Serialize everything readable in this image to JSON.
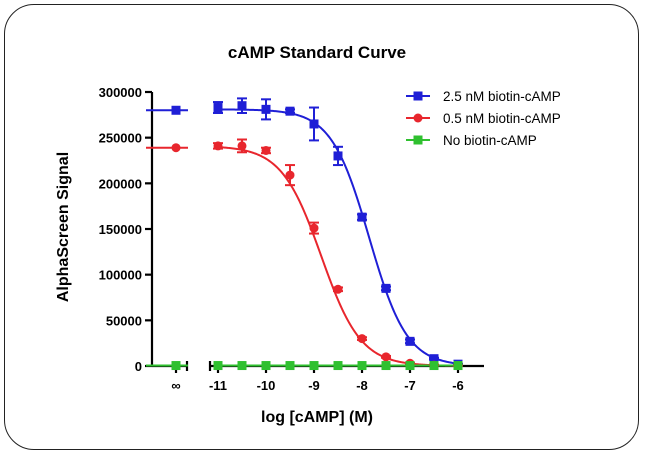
{
  "chart_data": {
    "type": "line",
    "title": "cAMP Standard Curve",
    "xlabel": "log [cAMP] (M)",
    "ylabel": "AlphaScreen Signal",
    "xlim": [
      -11.6,
      -5.9
    ],
    "ylim": [
      0,
      300000
    ],
    "x_break_label": "∞",
    "xticks": [
      -11,
      -10,
      -9,
      -8,
      -7,
      -6
    ],
    "xtick_labels": [
      "-11",
      "-10",
      "-9",
      "-8",
      "-7",
      "-6"
    ],
    "yticks": [
      0,
      50000,
      100000,
      150000,
      200000,
      250000,
      300000
    ],
    "ytick_labels": [
      "0",
      "50000",
      "100000",
      "150000",
      "200000",
      "250000",
      "300000"
    ],
    "legend_position": "top-right",
    "series": [
      {
        "name": "2.5 nM biotin-cAMP",
        "color": "#1f1fd6",
        "marker": "square",
        "zero_point": 280000,
        "x": [
          -11,
          -10.5,
          -10,
          -9.5,
          -9,
          -8.5,
          -8,
          -7.5,
          -7,
          -6.5,
          -6
        ],
        "y": [
          283000,
          285000,
          281000,
          279000,
          265000,
          230000,
          163000,
          85000,
          27000,
          8000,
          2000
        ],
        "error": [
          6000,
          8000,
          11000,
          2000,
          18000,
          10000,
          3000,
          2000,
          2000,
          1000,
          500
        ],
        "fit": {
          "top": 281000,
          "bottom": 0,
          "logIC50": -7.85,
          "hill": 1.1
        }
      },
      {
        "name": "0.5 nM biotin-cAMP",
        "color": "#e8262d",
        "marker": "circle",
        "zero_point": 239000,
        "x": [
          -11,
          -10.5,
          -10,
          -9.5,
          -9,
          -8.5,
          -8,
          -7.5,
          -7,
          -6.5,
          -6
        ],
        "y": [
          241000,
          241000,
          236000,
          209000,
          151000,
          84000,
          30000,
          10000,
          3000,
          1000,
          500
        ],
        "error": [
          3000,
          7000,
          3000,
          11000,
          6000,
          2000,
          1500,
          1000,
          500,
          500,
          300
        ],
        "fit": {
          "top": 241000,
          "bottom": 0,
          "logIC50": -8.85,
          "hill": 1.05
        }
      },
      {
        "name": "No biotin-cAMP",
        "color": "#2fc02f",
        "marker": "square",
        "zero_point": 500,
        "x": [
          -11,
          -10.5,
          -10,
          -9.5,
          -9,
          -8.5,
          -8,
          -7.5,
          -7,
          -6.5,
          -6
        ],
        "y": [
          500,
          500,
          500,
          500,
          500,
          500,
          500,
          500,
          500,
          500,
          500
        ],
        "error": [
          0,
          0,
          0,
          0,
          0,
          0,
          0,
          0,
          0,
          0,
          0
        ]
      }
    ]
  }
}
